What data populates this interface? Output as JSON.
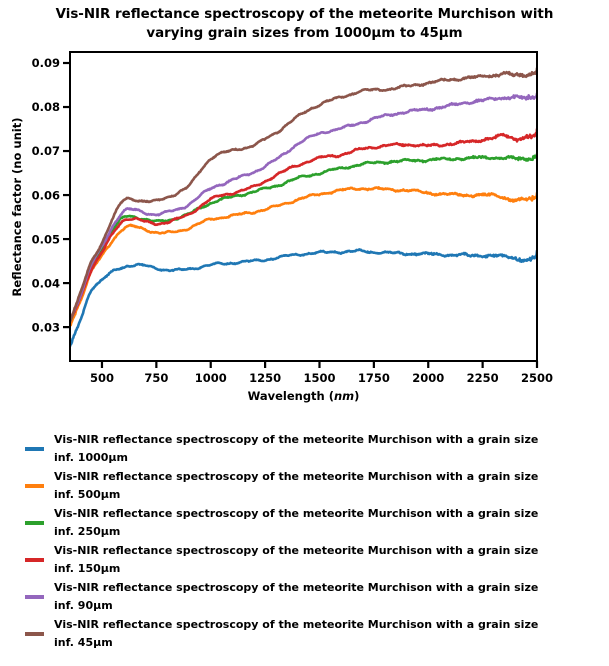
{
  "chart_data": {
    "type": "line",
    "title": "Vis-NIR reflectance spectroscopy of the meteorite Murchison with\nvarying grain sizes from 1000μm to 45μm",
    "xlabel_prefix": "Wavelength (",
    "xlabel_math": "nm",
    "xlabel_suffix": ")",
    "ylabel": "Reflectance factor (no unit)",
    "xlim": [
      353,
      2500
    ],
    "ylim": [
      0.0223,
      0.0925
    ],
    "xticks": [
      500,
      750,
      1000,
      1250,
      1500,
      1750,
      2000,
      2250,
      2500
    ],
    "yticks": [
      0.03,
      0.04,
      0.05,
      0.06,
      0.07,
      0.08,
      0.09
    ],
    "grid": false,
    "legend_position": "below-left",
    "axis_color": "#000000",
    "x": [
      350,
      400,
      450,
      500,
      550,
      600,
      650,
      700,
      750,
      800,
      850,
      900,
      1000,
      1100,
      1200,
      1300,
      1400,
      1500,
      1600,
      1700,
      1800,
      1900,
      2000,
      2100,
      2200,
      2300,
      2350,
      2400,
      2450,
      2480,
      2500
    ],
    "series": [
      {
        "label": "Vis-NIR reflectance spectroscopy of the meteorite Murchison with a grain size\ninf. 1000μm",
        "grain_size": "1000μm",
        "color": "#1f77b4",
        "values": [
          0.025,
          0.0315,
          0.0384,
          0.0406,
          0.0426,
          0.0437,
          0.0441,
          0.0439,
          0.0434,
          0.043,
          0.0429,
          0.0432,
          0.0441,
          0.0446,
          0.045,
          0.0457,
          0.0465,
          0.0469,
          0.0471,
          0.0472,
          0.0469,
          0.0467,
          0.0466,
          0.0464,
          0.0463,
          0.0462,
          0.046,
          0.0457,
          0.0452,
          0.0455,
          0.0463
        ]
      },
      {
        "label": "Vis-NIR reflectance spectroscopy of the meteorite Murchison with a grain size\ninf. 500μm",
        "grain_size": "500μm",
        "color": "#ff7f0e",
        "values": [
          0.03,
          0.036,
          0.0424,
          0.0462,
          0.0498,
          0.0524,
          0.0528,
          0.0522,
          0.0515,
          0.0514,
          0.0518,
          0.0525,
          0.0545,
          0.0553,
          0.0562,
          0.0574,
          0.059,
          0.0602,
          0.0611,
          0.0615,
          0.0613,
          0.0611,
          0.0605,
          0.0601,
          0.06,
          0.0599,
          0.0594,
          0.0588,
          0.059,
          0.0592,
          0.0597
        ]
      },
      {
        "label": "Vis-NIR reflectance spectroscopy of the meteorite Murchison with a grain size\ninf. 250μm",
        "grain_size": "250μm",
        "color": "#2ca02c",
        "values": [
          0.031,
          0.0372,
          0.0438,
          0.0478,
          0.052,
          0.0549,
          0.0551,
          0.0544,
          0.054,
          0.0543,
          0.0549,
          0.0557,
          0.0582,
          0.0596,
          0.0608,
          0.0621,
          0.0638,
          0.065,
          0.0661,
          0.067,
          0.0675,
          0.0678,
          0.068,
          0.0682,
          0.0684,
          0.0685,
          0.0684,
          0.0683,
          0.0682,
          0.0684,
          0.0688
        ]
      },
      {
        "label": "Vis-NIR reflectance spectroscopy of the meteorite Murchison with a grain size\ninf. 150μm",
        "grain_size": "150μm",
        "color": "#d62728",
        "values": [
          0.0305,
          0.0366,
          0.043,
          0.047,
          0.0512,
          0.0543,
          0.0546,
          0.0539,
          0.0535,
          0.0539,
          0.0546,
          0.0556,
          0.059,
          0.0605,
          0.0619,
          0.0645,
          0.0668,
          0.0684,
          0.0692,
          0.0705,
          0.0712,
          0.0715,
          0.0712,
          0.0716,
          0.0722,
          0.073,
          0.0735,
          0.0728,
          0.0731,
          0.0733,
          0.0737
        ]
      },
      {
        "label": "Vis-NIR reflectance spectroscopy of the meteorite Murchison with a grain size\ninf. 90μm",
        "grain_size": "90μm",
        "color": "#9467bd",
        "values": [
          0.031,
          0.0372,
          0.044,
          0.0482,
          0.053,
          0.0563,
          0.0566,
          0.056,
          0.0556,
          0.0561,
          0.0568,
          0.0579,
          0.0615,
          0.0634,
          0.0653,
          0.068,
          0.0716,
          0.074,
          0.0751,
          0.0766,
          0.078,
          0.0789,
          0.0795,
          0.0803,
          0.0812,
          0.0818,
          0.0821,
          0.0823,
          0.0819,
          0.0822,
          0.0826
        ]
      },
      {
        "label": "Vis-NIR reflectance spectroscopy of the meteorite Murchison with a grain size\ninf. 45μm",
        "grain_size": "45μm",
        "color": "#8c564b",
        "values": [
          0.0312,
          0.0376,
          0.0446,
          0.0492,
          0.0548,
          0.0588,
          0.059,
          0.0586,
          0.0586,
          0.0595,
          0.0606,
          0.0621,
          0.0683,
          0.0701,
          0.0714,
          0.0742,
          0.0778,
          0.0806,
          0.0822,
          0.0837,
          0.084,
          0.0847,
          0.0855,
          0.0862,
          0.0867,
          0.0872,
          0.0876,
          0.0872,
          0.0874,
          0.0876,
          0.0879
        ]
      }
    ]
  }
}
